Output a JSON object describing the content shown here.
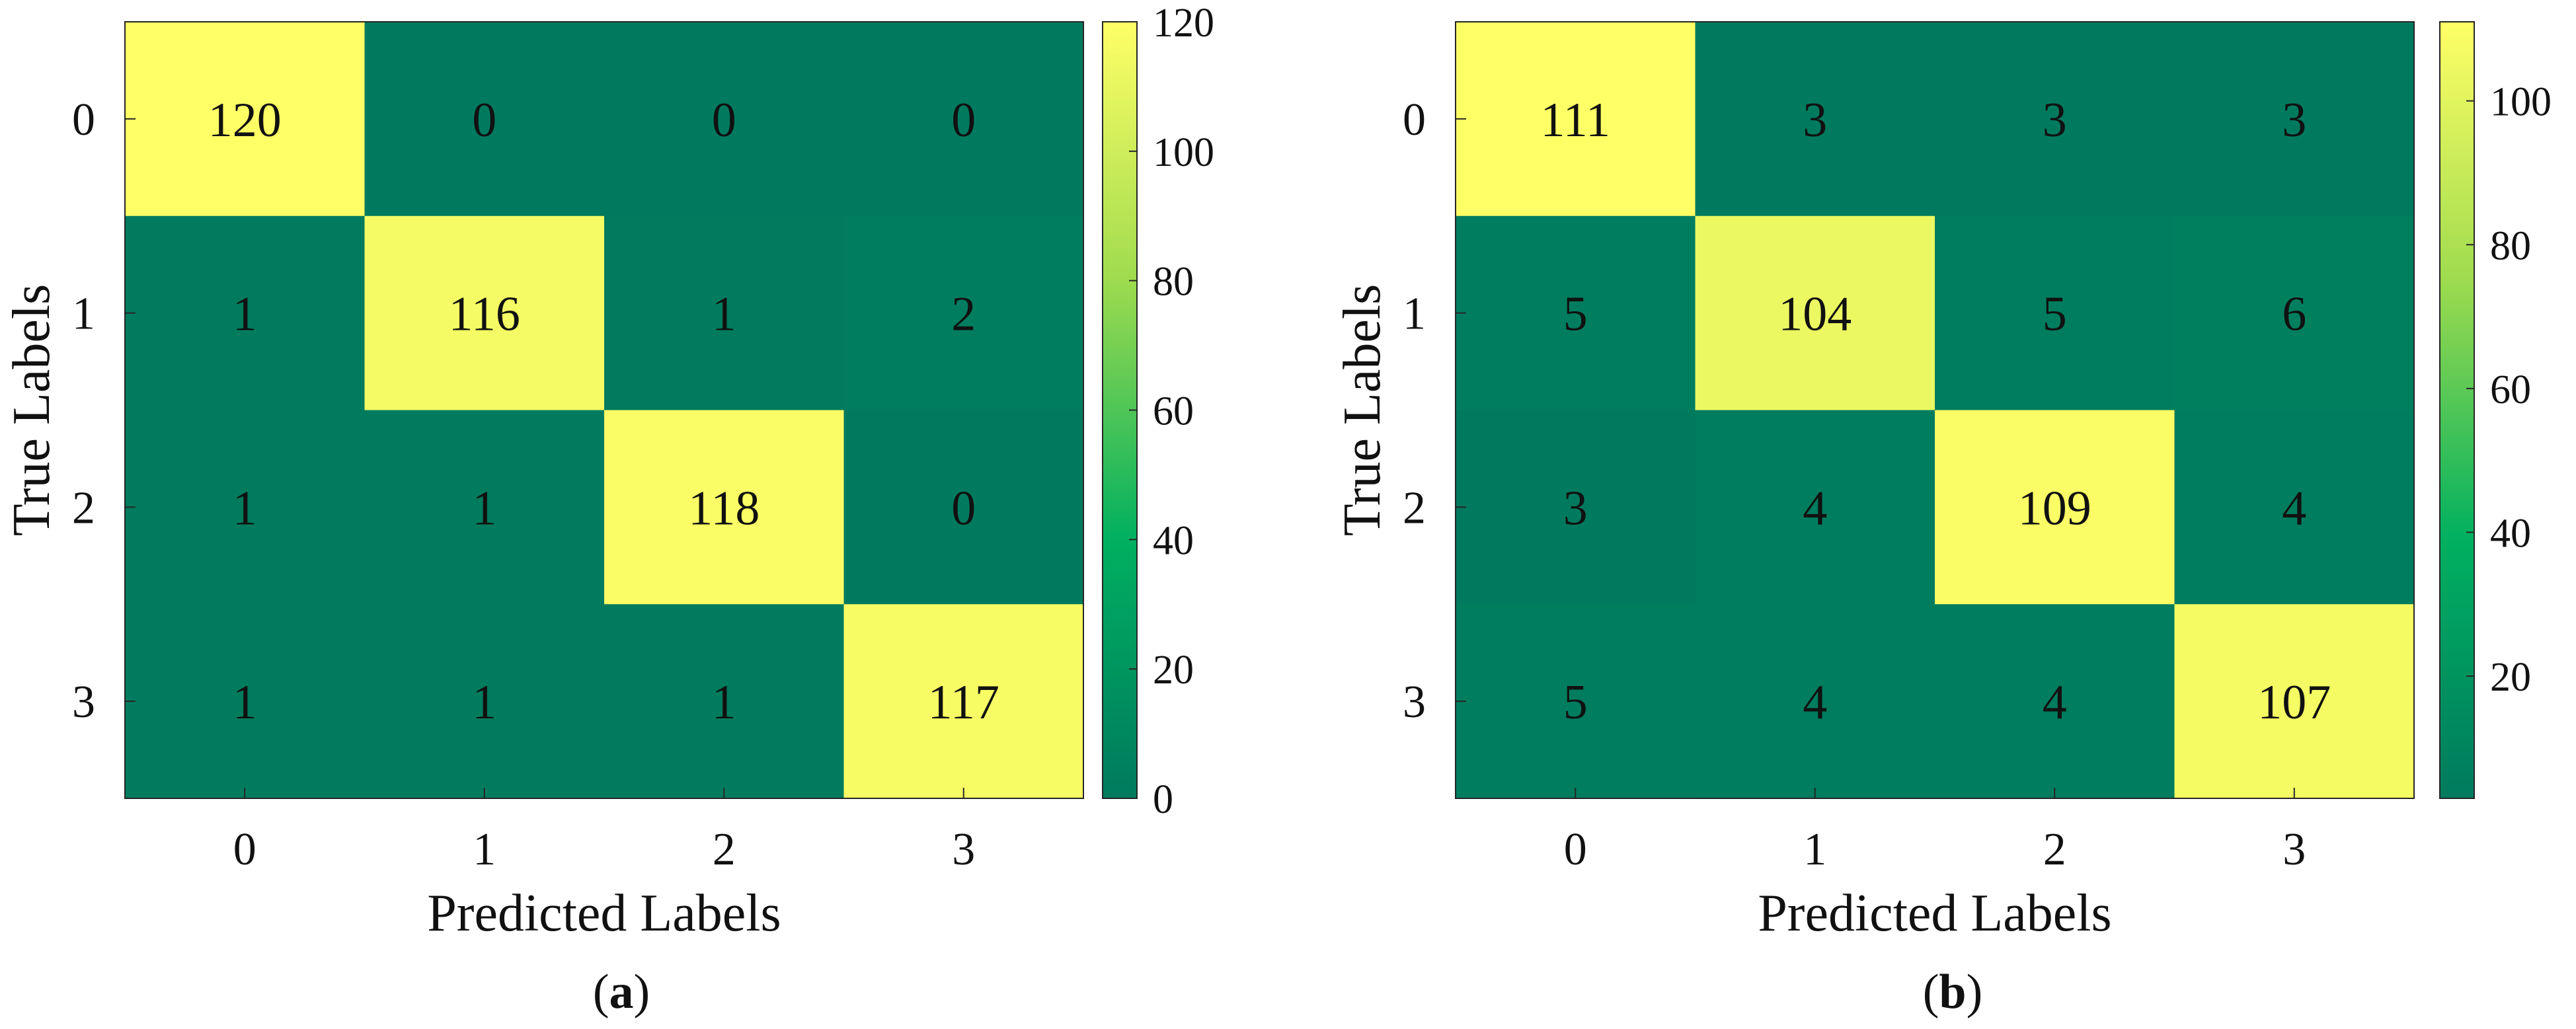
{
  "figure": {
    "panels": [
      "(a)",
      "(b)"
    ]
  },
  "chart_data": [
    {
      "type": "heatmap",
      "panel_label": "a",
      "xlabel": "Predicted Labels",
      "ylabel": "True Labels",
      "x_ticks": [
        "0",
        "1",
        "2",
        "3"
      ],
      "y_ticks": [
        "0",
        "1",
        "2",
        "3"
      ],
      "matrix": [
        [
          120,
          0,
          0,
          0
        ],
        [
          1,
          116,
          1,
          2
        ],
        [
          1,
          1,
          118,
          0
        ],
        [
          1,
          1,
          1,
          117
        ]
      ],
      "colorbar": {
        "range": [
          0,
          120
        ],
        "ticks": [
          0,
          20,
          40,
          60,
          80,
          100,
          120
        ]
      },
      "colormap": [
        "#007a5e",
        "#00b060",
        "#9edb4e",
        "#ffff66"
      ],
      "grid": false
    },
    {
      "type": "heatmap",
      "panel_label": "b",
      "xlabel": "Predicted Labels",
      "ylabel": "True Labels",
      "x_ticks": [
        "0",
        "1",
        "2",
        "3"
      ],
      "y_ticks": [
        "0",
        "1",
        "2",
        "3"
      ],
      "matrix": [
        [
          111,
          3,
          3,
          3
        ],
        [
          5,
          104,
          5,
          6
        ],
        [
          3,
          4,
          109,
          4
        ],
        [
          5,
          4,
          4,
          107
        ]
      ],
      "colorbar": {
        "range": [
          3,
          111
        ],
        "ticks": [
          20,
          40,
          60,
          80,
          100
        ]
      },
      "colormap": [
        "#007a5e",
        "#00b060",
        "#9edb4e",
        "#ffff66"
      ],
      "grid": false
    }
  ]
}
